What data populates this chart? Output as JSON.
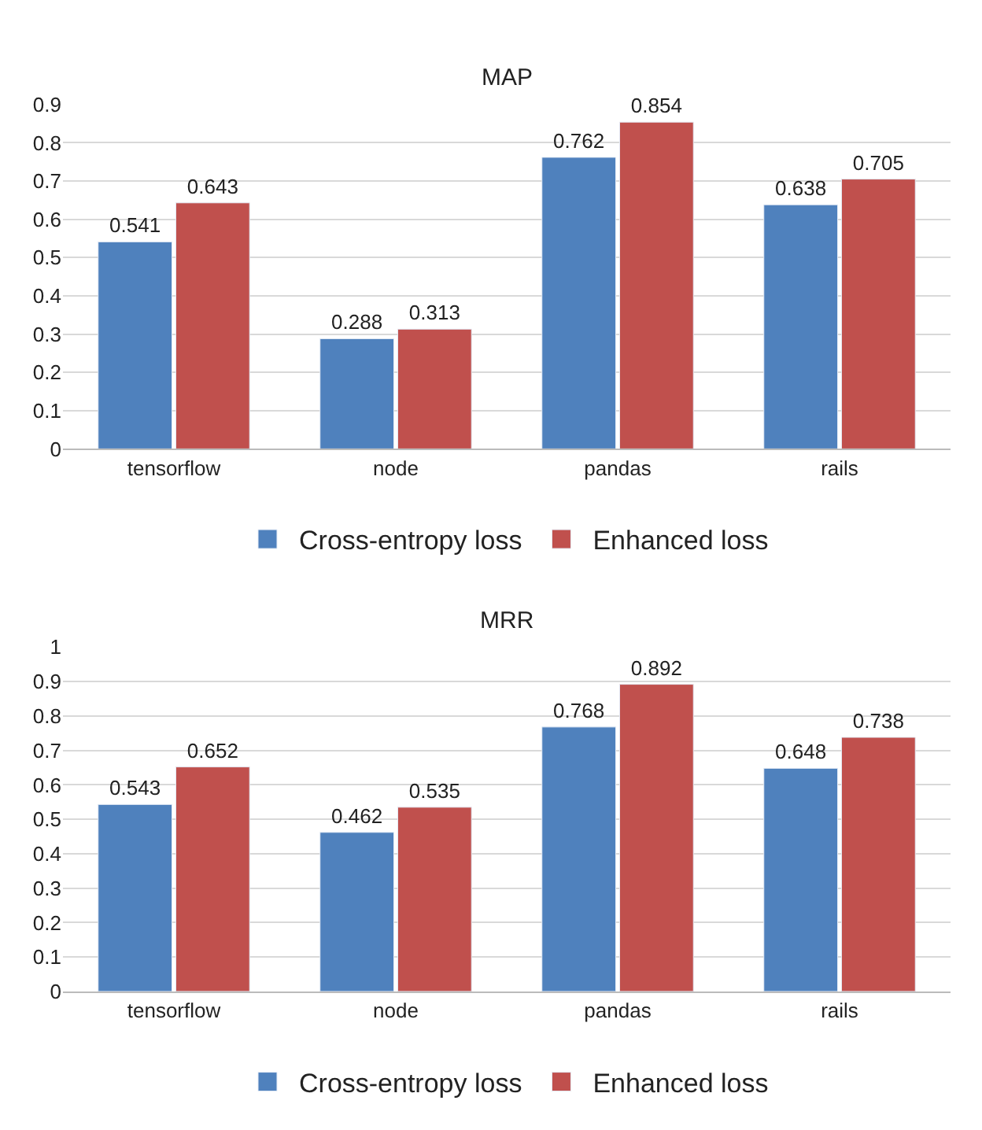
{
  "chart_data": [
    {
      "type": "bar",
      "title": "MAP",
      "categories": [
        "tensorflow",
        "node",
        "pandas",
        "rails"
      ],
      "series": [
        {
          "name": "Cross-entropy loss",
          "color": "#4f81bd",
          "values": [
            0.541,
            0.288,
            0.762,
            0.638
          ]
        },
        {
          "name": "Enhanced loss",
          "color": "#c0504d",
          "values": [
            0.643,
            0.313,
            0.854,
            0.705
          ]
        }
      ],
      "ylim": [
        0,
        0.9
      ],
      "yticks": [
        0,
        0.1,
        0.2,
        0.3,
        0.4,
        0.5,
        0.6,
        0.7,
        0.8,
        0.9
      ],
      "grid": "y",
      "legend": "bottom",
      "data_labels": true
    },
    {
      "type": "bar",
      "title": "MRR",
      "categories": [
        "tensorflow",
        "node",
        "pandas",
        "rails"
      ],
      "series": [
        {
          "name": "Cross-entropy loss",
          "color": "#4f81bd",
          "values": [
            0.543,
            0.462,
            0.768,
            0.648
          ]
        },
        {
          "name": "Enhanced loss",
          "color": "#c0504d",
          "values": [
            0.652,
            0.535,
            0.892,
            0.738
          ]
        }
      ],
      "ylim": [
        0,
        1
      ],
      "yticks": [
        0,
        0.1,
        0.2,
        0.3,
        0.4,
        0.5,
        0.6,
        0.7,
        0.8,
        0.9,
        1
      ],
      "grid": "y",
      "legend": "bottom",
      "data_labels": true
    }
  ]
}
